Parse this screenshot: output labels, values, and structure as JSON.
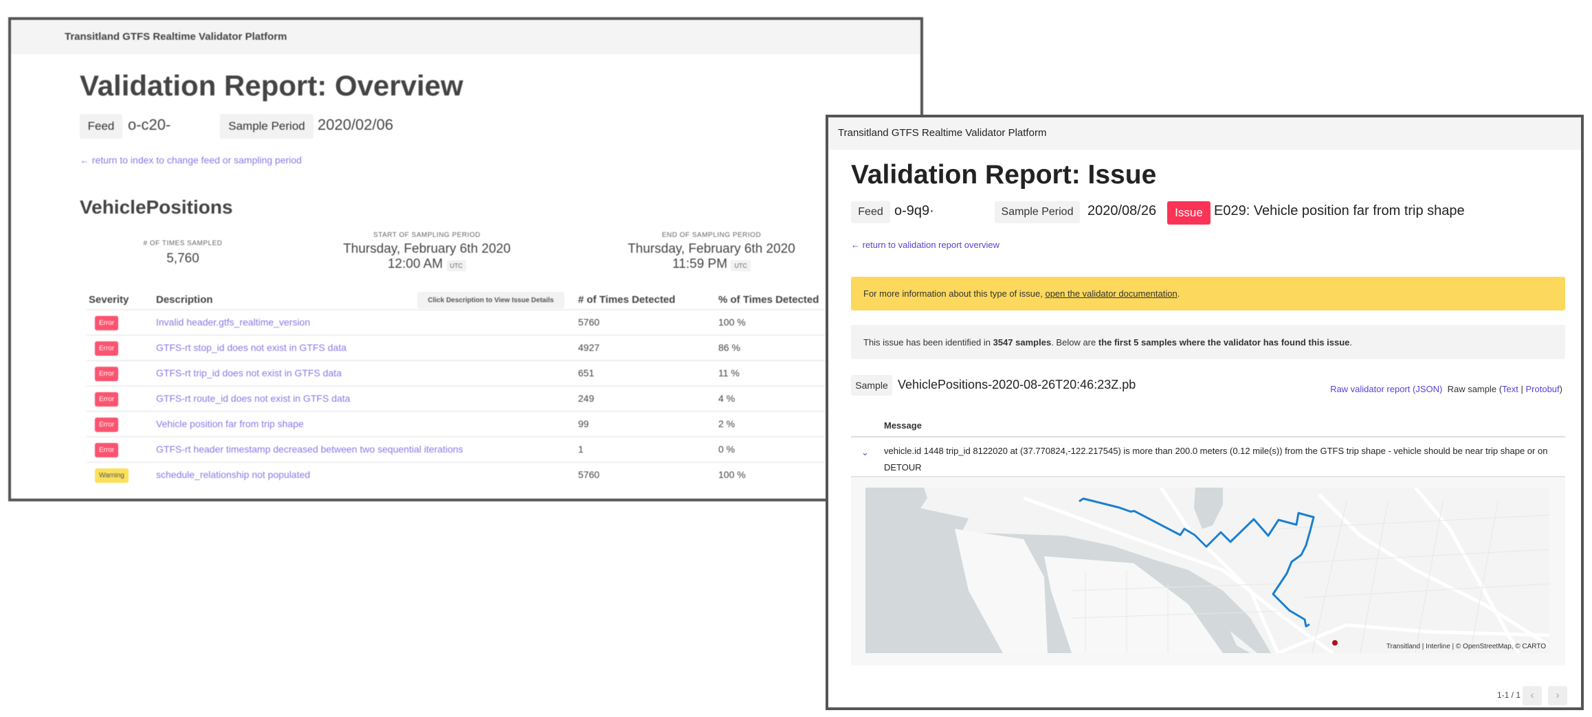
{
  "overview": {
    "app_title": "Transitland GTFS Realtime Validator Platform",
    "title": "Validation Report: Overview",
    "feed_label": "Feed",
    "feed_value": "o-c20-",
    "sample_period_label": "Sample Period",
    "sample_period_value": "2020/02/06",
    "back_link": "← return to index to change feed or sampling period",
    "section_title": "VehiclePositions",
    "stats": {
      "times_sampled_label": "# OF TIMES SAMPLED",
      "times_sampled_value": "5,760",
      "start_label": "START OF SAMPLING PERIOD",
      "start_date": "Thursday, February 6th 2020",
      "start_time": "12:00 AM",
      "end_label": "END OF SAMPLING PERIOD",
      "end_date": "Thursday, February 6th 2020",
      "end_time": "11:59 PM",
      "tz": "UTC"
    },
    "table": {
      "headers": [
        "Severity",
        "Description",
        "# of Times Detected",
        "% of Times Detected"
      ],
      "hint_button": "Click Description to View Issue Details",
      "rows": [
        {
          "severity": "Error",
          "description": "Invalid header.gtfs_realtime_version",
          "count": "5760",
          "percent": "100 %"
        },
        {
          "severity": "Error",
          "description": "GTFS-rt stop_id does not exist in GTFS data",
          "count": "4927",
          "percent": "86 %"
        },
        {
          "severity": "Error",
          "description": "GTFS-rt trip_id does not exist in GTFS data",
          "count": "651",
          "percent": "11 %"
        },
        {
          "severity": "Error",
          "description": "GTFS-rt route_id does not exist in GTFS data",
          "count": "249",
          "percent": "4 %"
        },
        {
          "severity": "Error",
          "description": "Vehicle position far from trip shape",
          "count": "99",
          "percent": "2 %"
        },
        {
          "severity": "Error",
          "description": "GTFS-rt header timestamp decreased between two sequential iterations",
          "count": "1",
          "percent": "0 %"
        },
        {
          "severity": "Warning",
          "description": "schedule_relationship not populated",
          "count": "5760",
          "percent": "100 %"
        }
      ]
    }
  },
  "issue": {
    "app_title": "Transitland GTFS Realtime Validator Platform",
    "title": "Validation Report: Issue",
    "feed_label": "Feed",
    "feed_value": "o-9q9·",
    "sample_period_label": "Sample Period",
    "sample_period_value": "2020/08/26",
    "issue_label": "Issue",
    "issue_value": "E029: Vehicle position far from trip shape",
    "back_link": "← return to validation report overview",
    "info_prefix": "For more information about this type of issue, ",
    "info_link": "open the validator documentation",
    "info_suffix": ".",
    "summary": {
      "p1": "This issue has been identified in ",
      "b1": "3547 samples",
      "p2": ". Below are ",
      "b2": "the first 5 samples where the validator has found this issue",
      "p3": "."
    },
    "sample_label": "Sample",
    "sample_value": "VehiclePositions-2020-08-26T20:46:23Z.pb",
    "raw_report_link": "Raw validator report (JSON)",
    "raw_sample_prefix": "Raw sample (",
    "raw_text_link": "Text",
    "raw_sep": " | ",
    "raw_protobuf_link": "Protobuf",
    "raw_suffix": ")",
    "message_header": "Message",
    "message_line1": "vehicle.id 1448 trip_id 8122020 at (37.770824,-122.217545) is more than 200.0 meters (0.12 mile(s)) from the GTFS trip shape - vehicle should be near trip shape or on",
    "message_line2": "DETOUR",
    "map_attribution": "Transitland | Interline | © OpenStreetMap, © CARTO",
    "pagination": "1-1 / 1",
    "colors": {
      "route": "#1a7fd0",
      "vehicle": "#b0101a",
      "issue_badge": "#fb3457",
      "notice": "#fcd85c",
      "link": "#5b3fd6"
    }
  }
}
